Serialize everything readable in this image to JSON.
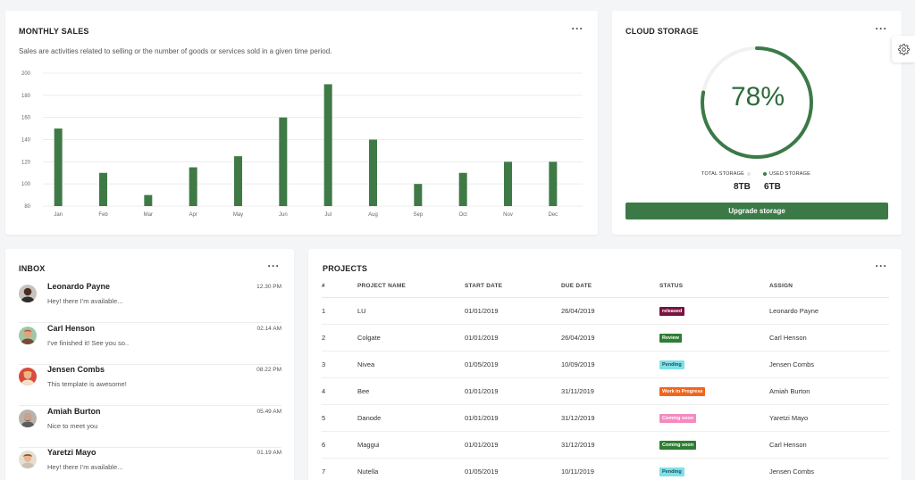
{
  "sales": {
    "title": "MONTHLY SALES",
    "description": "Sales are activities related to selling or the number of goods or services sold in a given time period.",
    "chart_data": {
      "type": "bar",
      "categories": [
        "Jan",
        "Feb",
        "Mar",
        "Apr",
        "May",
        "Jun",
        "Jul",
        "Aug",
        "Sep",
        "Oct",
        "Nov",
        "Dec"
      ],
      "values": [
        150,
        110,
        90,
        115,
        125,
        160,
        190,
        140,
        100,
        110,
        120,
        120
      ],
      "yticks": [
        "80",
        "100",
        "120",
        "140",
        "160",
        "180",
        "200"
      ],
      "ylim": [
        80,
        200
      ],
      "grid": true,
      "bar_color": "#3f7a46"
    }
  },
  "storage": {
    "title": "CLOUD STORAGE",
    "percent_label": "78%",
    "percent": 78,
    "total_label": "TOTAL STORAGE",
    "used_label": "USED STORAGE",
    "total_value": "8TB",
    "used_value": "6TB",
    "button_label": "Upgrade storage",
    "ring_color": "#3b7a47",
    "track_color": "#f1f1f1"
  },
  "inbox": {
    "title": "INBOX",
    "messages": [
      {
        "name": "Leonardo Payne",
        "text": "Hey! there I'm available...",
        "time": "12.30 PM"
      },
      {
        "name": "Carl Henson",
        "text": "I've finished it! See you so..",
        "time": "02.14 AM"
      },
      {
        "name": "Jensen Combs",
        "text": "This template is awesome!",
        "time": "08.22 PM"
      },
      {
        "name": "Amiah Burton",
        "text": "Nice to meet you",
        "time": "05.49 AM"
      },
      {
        "name": "Yaretzi Mayo",
        "text": "Hey! there I'm available...",
        "time": "01.19 AM"
      }
    ]
  },
  "projects": {
    "title": "PROJECTS",
    "columns": [
      "#",
      "PROJECT NAME",
      "START DATE",
      "DUE DATE",
      "STATUS",
      "ASSIGN"
    ],
    "rows": [
      {
        "num": "1",
        "name": "LU",
        "start": "01/01/2019",
        "due": "26/04/2019",
        "status": "released",
        "status_bg": "#7a1340",
        "status_fg": "#ffffff",
        "assign": "Leonardo Payne"
      },
      {
        "num": "2",
        "name": "Colgate",
        "start": "01/01/2019",
        "due": "26/04/2019",
        "status": "Review",
        "status_bg": "#2e7d32",
        "status_fg": "#ffffff",
        "assign": "Carl Henson"
      },
      {
        "num": "3",
        "name": "Nivea",
        "start": "01/05/2019",
        "due": "10/09/2019",
        "status": "Pending",
        "status_bg": "#7ee0e8",
        "status_fg": "#1f4f55",
        "assign": "Jensen Combs"
      },
      {
        "num": "4",
        "name": "Bee",
        "start": "01/01/2019",
        "due": "31/11/2019",
        "status": "Work in Progress",
        "status_bg": "#f0661c",
        "status_fg": "#ffffff",
        "assign": "Amiah Burton"
      },
      {
        "num": "5",
        "name": "Danode",
        "start": "01/01/2019",
        "due": "31/12/2019",
        "status": "Coming soon",
        "status_bg": "#f48ac0",
        "status_fg": "#ffffff",
        "assign": "Yaretzi Mayo"
      },
      {
        "num": "6",
        "name": "Maggui",
        "start": "01/01/2019",
        "due": "31/12/2019",
        "status": "Coming soon",
        "status_bg": "#2e7d32",
        "status_fg": "#ffffff",
        "assign": "Carl Henson"
      },
      {
        "num": "7",
        "name": "Nutella",
        "start": "01/05/2019",
        "due": "10/11/2019",
        "status": "Pending",
        "status_bg": "#7ee0e8",
        "status_fg": "#1f4f55",
        "assign": "Jensen Combs"
      }
    ]
  }
}
